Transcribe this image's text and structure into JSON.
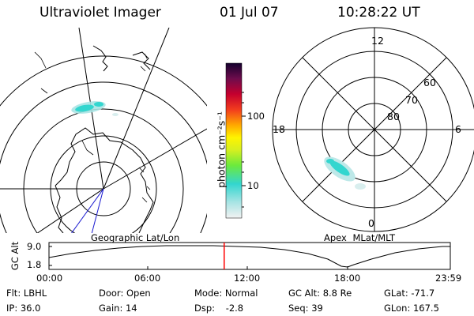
{
  "header": {
    "instrument": "Ultraviolet Imager",
    "date": "01 Jul 07",
    "time": "10:28:22 UT"
  },
  "colorbar": {
    "unit": "photon cm⁻²s⁻¹",
    "ticks": [
      "100",
      "10"
    ]
  },
  "left_panel": {
    "label": "Geographic Lat/Lon"
  },
  "right_panel": {
    "label": "Apex MLat/MLT",
    "mlt_labels": {
      "top": "12",
      "left": "18",
      "right": "6",
      "bottom": "0"
    },
    "lat_labels": [
      "60",
      "70",
      "80"
    ]
  },
  "timeline": {
    "ylabel": "GC Alt",
    "y_ticks": [
      "9.0",
      "1.8"
    ],
    "x_ticks": [
      "00:00",
      "06:00",
      "12:00",
      "18:00",
      "23:59"
    ],
    "current_time_hours": 10.47,
    "marker_color": "#ff0000"
  },
  "status": {
    "row1": [
      {
        "label": "Flt:",
        "value": "LBHL"
      },
      {
        "label": "Door:",
        "value": "Open"
      },
      {
        "label": "Mode:",
        "value": "Normal"
      },
      {
        "label": "GC Alt:",
        "value": "8.8 Re"
      },
      {
        "label": "GLat:",
        "value": "-71.7"
      }
    ],
    "row2": [
      {
        "label": "IP:",
        "value": "36.0"
      },
      {
        "label": "Gain:",
        "value": "14"
      },
      {
        "label": "Dsp:",
        "value": "-2.8"
      },
      {
        "label": "Seq:",
        "value": "39"
      },
      {
        "label": "GLon:",
        "value": "167.5"
      }
    ]
  }
}
